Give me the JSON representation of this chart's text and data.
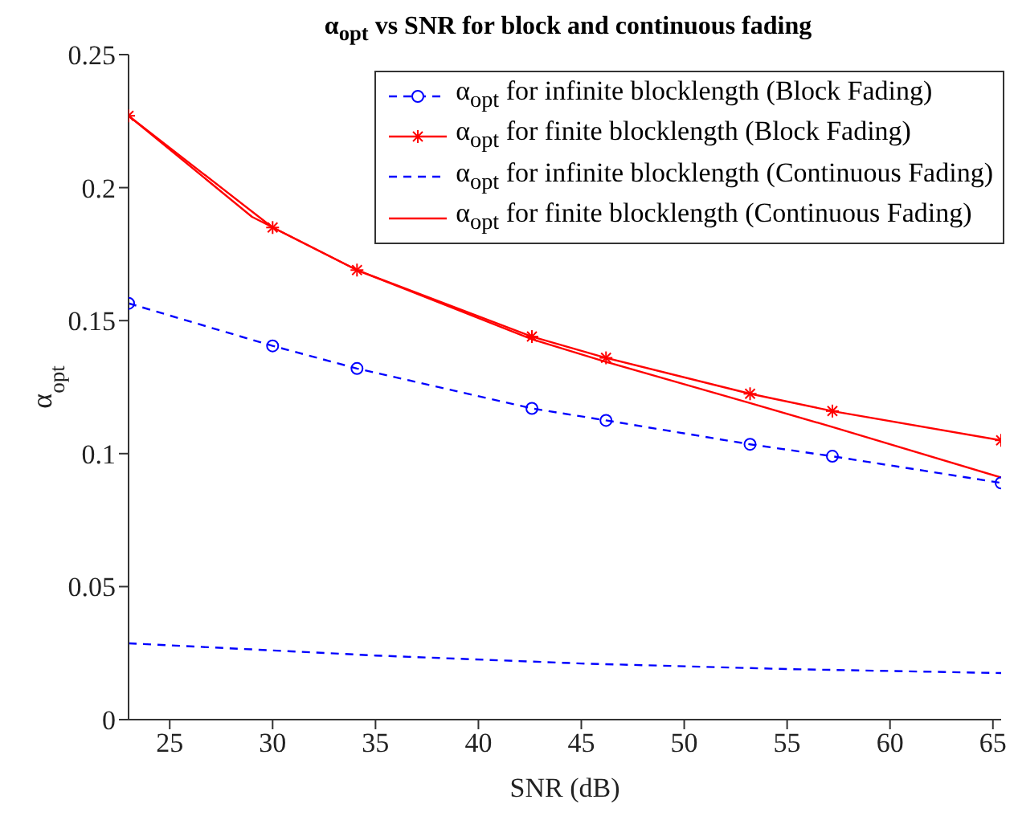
{
  "chart_data": {
    "type": "line",
    "title": "α$_{opt}$ vs SNR for block and continuous fading",
    "xlabel": "SNR (dB)",
    "ylabel": "α$_{opt}$",
    "xlim": [
      23,
      65.4
    ],
    "xticks": [
      25,
      30,
      35,
      40,
      45,
      50,
      55,
      60,
      65
    ],
    "ylim": [
      0,
      0.25
    ],
    "yticks": [
      0,
      0.05,
      0.1,
      0.15,
      0.2,
      0.25
    ],
    "grid": false,
    "legend": "top right",
    "series": [
      {
        "name": "α$_{opt}$ for infinite blocklength (Block Fading)",
        "color": "#0000ff",
        "marker": "circle",
        "line_style": "dashed",
        "x": [
          23,
          30,
          34.1,
          42.6,
          46.2,
          53.2,
          57.2,
          65.4
        ],
        "values": [
          0.1565,
          0.1405,
          0.132,
          0.117,
          0.1125,
          0.1035,
          0.099,
          0.089
        ]
      },
      {
        "name": "α$_{opt}$ for finite blocklength (Block Fading)",
        "color": "#ff0000",
        "marker": "cross",
        "line_style": "solid",
        "x": [
          23,
          30,
          34.1,
          42.6,
          46.2,
          53.2,
          57.2,
          65.4
        ],
        "values": [
          0.227,
          0.185,
          0.169,
          0.144,
          0.136,
          0.1225,
          0.116,
          0.105
        ]
      },
      {
        "name": "α$_{opt}$ for infinite blocklength (Continuous Fading)",
        "color": "#0000ff",
        "marker": "none",
        "line_style": "dashed",
        "x": [
          23,
          35,
          45,
          55,
          65.4
        ],
        "values": [
          0.0287,
          0.0241,
          0.0211,
          0.019,
          0.0175
        ]
      },
      {
        "name": "α$_{opt}$ for finite blocklength (Continuous Fading)",
        "color": "#ff0000",
        "marker": "none",
        "line_style": "solid",
        "x": [
          23,
          29,
          34.1,
          42.6,
          46.2,
          53.2,
          57.2,
          65.4
        ],
        "values": [
          0.227,
          0.189,
          0.169,
          0.143,
          0.1345,
          0.119,
          0.11,
          0.091
        ]
      }
    ]
  }
}
